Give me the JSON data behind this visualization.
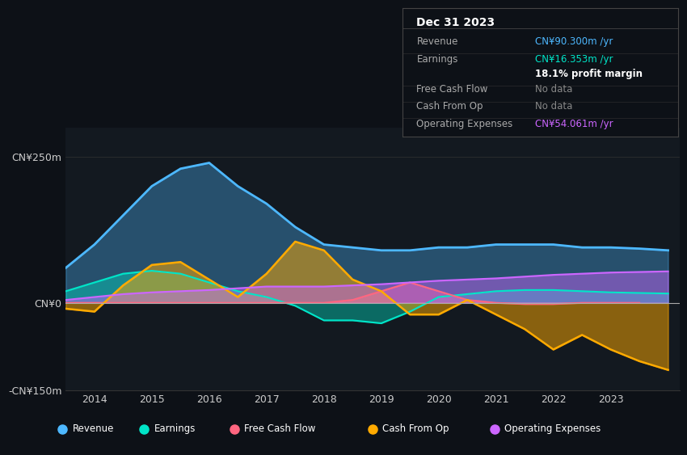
{
  "bg_color": "#0d1117",
  "chart_bg": "#131920",
  "title": "Dec 31 2023",
  "info_box_rows": [
    {
      "label": "Revenue",
      "value": "CN¥90.300m /yr",
      "value_color": "#4db8ff",
      "extra": ""
    },
    {
      "label": "Earnings",
      "value": "CN¥16.353m /yr",
      "value_color": "#00e5c8",
      "extra": ""
    },
    {
      "label": "",
      "value": "18.1% profit margin",
      "value_color": "#ffffff",
      "extra": ""
    },
    {
      "label": "Free Cash Flow",
      "value": "No data",
      "value_color": "#888888",
      "extra": ""
    },
    {
      "label": "Cash From Op",
      "value": "No data",
      "value_color": "#888888",
      "extra": ""
    },
    {
      "label": "Operating Expenses",
      "value": "CN¥54.061m /yr",
      "value_color": "#cc66ff",
      "extra": ""
    }
  ],
  "ylim": [
    -150,
    300
  ],
  "xlim": [
    2013.5,
    2024.2
  ],
  "yticks": [
    -150,
    0,
    250
  ],
  "ytick_labels": [
    "-CN¥150m",
    "CN¥0",
    "CN¥250m"
  ],
  "xticks": [
    2014,
    2015,
    2016,
    2017,
    2018,
    2019,
    2020,
    2021,
    2022,
    2023
  ],
  "colors": {
    "revenue": "#4db8ff",
    "earnings": "#00e5c8",
    "free_cash_flow": "#ff6680",
    "cash_from_op": "#ffaa00",
    "op_expenses": "#cc66ff"
  },
  "revenue": {
    "x": [
      2013.5,
      2014,
      2014.5,
      2015,
      2015.5,
      2016,
      2016.5,
      2017,
      2017.5,
      2018,
      2018.5,
      2019,
      2019.5,
      2020,
      2020.5,
      2021,
      2021.5,
      2022,
      2022.5,
      2023,
      2023.5,
      2024.0
    ],
    "y": [
      60,
      100,
      150,
      200,
      230,
      240,
      200,
      170,
      130,
      100,
      95,
      90,
      90,
      95,
      95,
      100,
      100,
      100,
      95,
      95,
      93,
      90
    ]
  },
  "earnings": {
    "x": [
      2013.5,
      2014,
      2014.5,
      2015,
      2015.5,
      2016,
      2016.5,
      2017,
      2017.5,
      2018,
      2018.5,
      2019,
      2019.5,
      2020,
      2020.5,
      2021,
      2021.5,
      2022,
      2022.5,
      2023,
      2023.5,
      2024.0
    ],
    "y": [
      20,
      35,
      50,
      55,
      50,
      35,
      20,
      10,
      -5,
      -30,
      -30,
      -35,
      -15,
      10,
      15,
      20,
      22,
      22,
      20,
      18,
      17,
      16
    ]
  },
  "free_cash_flow": {
    "x": [
      2013.5,
      2014,
      2014.5,
      2015,
      2015.5,
      2016,
      2016.5,
      2017,
      2017.5,
      2018,
      2018.5,
      2019,
      2019.5,
      2020,
      2020.5,
      2021,
      2021.5,
      2022,
      2022.5,
      2023,
      2023.5
    ],
    "y": [
      0,
      0,
      0,
      0,
      0,
      0,
      0,
      0,
      0,
      0,
      5,
      20,
      35,
      20,
      5,
      0,
      -2,
      -2,
      0,
      0,
      0
    ]
  },
  "cash_from_op": {
    "x": [
      2013.5,
      2014,
      2014.5,
      2015,
      2015.5,
      2016,
      2016.5,
      2017,
      2017.5,
      2018,
      2018.5,
      2019,
      2019.5,
      2020,
      2020.5,
      2021,
      2021.5,
      2022,
      2022.5,
      2023,
      2023.5,
      2024.0
    ],
    "y": [
      -10,
      -15,
      30,
      65,
      70,
      40,
      10,
      50,
      105,
      90,
      40,
      20,
      -20,
      -20,
      5,
      -20,
      -45,
      -80,
      -55,
      -80,
      -100,
      -115
    ]
  },
  "op_expenses": {
    "x": [
      2013.5,
      2014,
      2014.5,
      2015,
      2015.5,
      2016,
      2016.5,
      2017,
      2017.5,
      2018,
      2018.5,
      2019,
      2019.5,
      2020,
      2020.5,
      2021,
      2021.5,
      2022,
      2022.5,
      2023,
      2023.5,
      2024.0
    ],
    "y": [
      5,
      10,
      15,
      18,
      20,
      22,
      25,
      28,
      28,
      28,
      30,
      32,
      35,
      38,
      40,
      42,
      45,
      48,
      50,
      52,
      53,
      54
    ]
  },
  "legend_items": [
    {
      "label": "Revenue",
      "color": "#4db8ff"
    },
    {
      "label": "Earnings",
      "color": "#00e5c8"
    },
    {
      "label": "Free Cash Flow",
      "color": "#ff6680"
    },
    {
      "label": "Cash From Op",
      "color": "#ffaa00"
    },
    {
      "label": "Operating Expenses",
      "color": "#cc66ff"
    }
  ]
}
